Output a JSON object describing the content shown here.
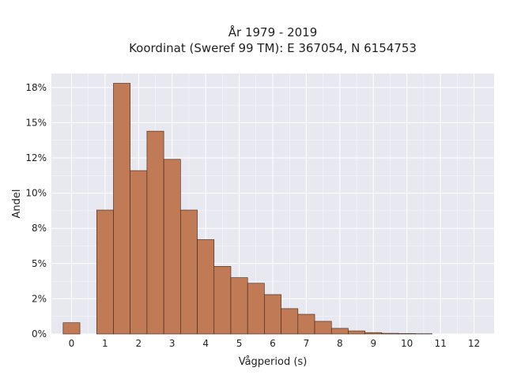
{
  "chart_data": {
    "type": "bar",
    "title": "År 1979 - 2019",
    "subtitle": "Koordinat (Sweref 99 TM): E 367054, N 6154753",
    "xlabel": "Vågperiod (s)",
    "ylabel": "Andel",
    "xlim": [
      -0.6,
      12.6
    ],
    "ylim": [
      0,
      18.5
    ],
    "x_ticks": [
      0,
      1,
      2,
      3,
      4,
      5,
      6,
      7,
      8,
      9,
      10,
      11,
      12
    ],
    "x_tick_labels": [
      "0",
      "1",
      "2",
      "3",
      "4",
      "5",
      "6",
      "7",
      "8",
      "9",
      "10",
      "11",
      "12"
    ],
    "y_ticks": [
      0,
      2.5,
      5,
      7.5,
      10,
      12.5,
      15,
      17.5
    ],
    "y_tick_labels": [
      "0%",
      "2%",
      "5%",
      "8%",
      "10%",
      "12%",
      "15%",
      "18%"
    ],
    "grid": true,
    "bar_width": 0.5,
    "bar_color": "#c07a55",
    "bar_edge_color": "#3d2416",
    "plot_background": "#e8e8f0",
    "grid_color": "#ffffff",
    "bars": [
      {
        "x": 0.0,
        "value": 0.8
      },
      {
        "x": 1.0,
        "value": 8.8
      },
      {
        "x": 1.5,
        "value": 17.8
      },
      {
        "x": 2.0,
        "value": 11.6
      },
      {
        "x": 2.5,
        "value": 14.4
      },
      {
        "x": 3.0,
        "value": 12.4
      },
      {
        "x": 3.5,
        "value": 8.8
      },
      {
        "x": 4.0,
        "value": 6.7
      },
      {
        "x": 4.5,
        "value": 4.8
      },
      {
        "x": 5.0,
        "value": 4.0
      },
      {
        "x": 5.5,
        "value": 3.6
      },
      {
        "x": 6.0,
        "value": 2.8
      },
      {
        "x": 6.5,
        "value": 1.8
      },
      {
        "x": 7.0,
        "value": 1.4
      },
      {
        "x": 7.5,
        "value": 0.9
      },
      {
        "x": 8.0,
        "value": 0.4
      },
      {
        "x": 8.5,
        "value": 0.22
      },
      {
        "x": 9.0,
        "value": 0.1
      },
      {
        "x": 9.5,
        "value": 0.05
      },
      {
        "x": 10.0,
        "value": 0.03
      },
      {
        "x": 10.5,
        "value": 0.02
      }
    ]
  }
}
